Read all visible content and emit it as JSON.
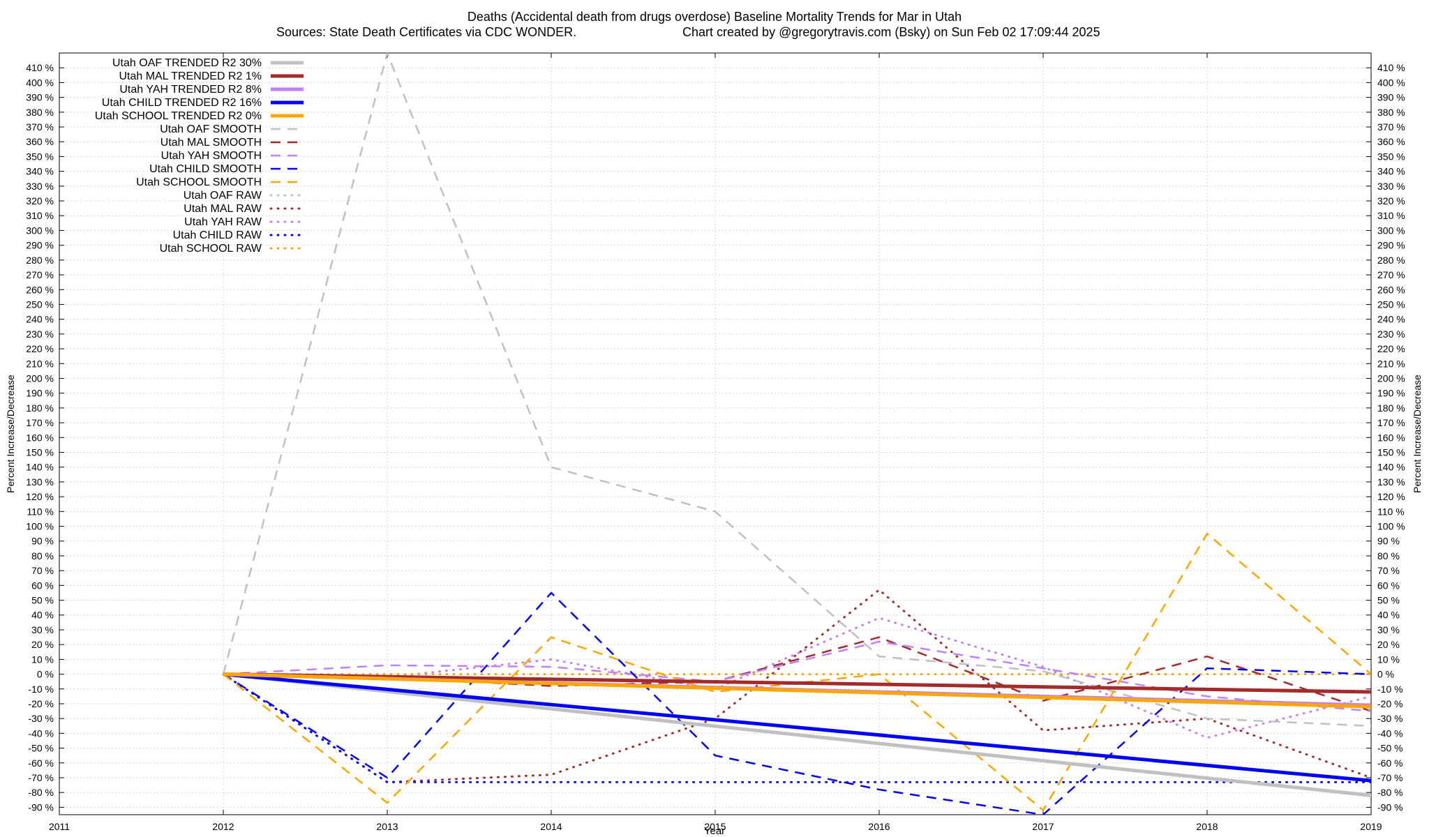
{
  "chart_data": {
    "type": "line",
    "title": "Deaths (Accidental death from drugs overdose)  Baseline Mortality Trends for Mar in Utah",
    "subtitle_sources": "Sources: State Death Certificates via CDC WONDER.",
    "subtitle_credit": "Chart created by @gregorytravis.com (Bsky) on Sun Feb 02 17:09:44 2025",
    "xlabel": "Year",
    "ylabel": "Percent Increase/Decrease",
    "y2label": "Percent Increase/Decrease",
    "xlim": [
      2011,
      2019
    ],
    "ylim": [
      -95,
      420
    ],
    "x_ticks": [
      2011,
      2012,
      2013,
      2014,
      2015,
      2016,
      2017,
      2018,
      2019
    ],
    "y_tick_start": -90,
    "y_tick_end": 410,
    "y_tick_step": 10,
    "y_tick_suffix": " %",
    "grid": true,
    "legend_position": "top-left",
    "series": [
      {
        "name": "Utah OAF TRENDED R2  30%",
        "style": "trend",
        "color": "#c0c0c0",
        "x": [
          2012,
          2019
        ],
        "y": [
          0,
          -82
        ]
      },
      {
        "name": "Utah MAL TRENDED R2   1%",
        "style": "trend",
        "color": "#a52a2a",
        "x": [
          2012,
          2019
        ],
        "y": [
          0,
          -12
        ]
      },
      {
        "name": "Utah YAH TRENDED R2   8%",
        "style": "trend",
        "color": "#c080ff",
        "x": [
          2012,
          2019
        ],
        "y": [
          0,
          -21
        ]
      },
      {
        "name": "Utah CHILD TRENDED R2  16%",
        "style": "trend",
        "color": "#0000ff",
        "x": [
          2012,
          2019
        ],
        "y": [
          0,
          -72
        ]
      },
      {
        "name": "Utah SCHOOL TRENDED R2   0%",
        "style": "trend",
        "color": "#ffa500",
        "x": [
          2012,
          2019
        ],
        "y": [
          0,
          -22
        ]
      },
      {
        "name": "Utah OAF SMOOTH",
        "style": "smooth",
        "color": "#c0c0c0",
        "x": [
          2012,
          2013,
          2014,
          2015,
          2016,
          2017,
          2018,
          2019
        ],
        "y": [
          0,
          420,
          140,
          110,
          12,
          2,
          -30,
          -35
        ]
      },
      {
        "name": "Utah MAL SMOOTH",
        "style": "smooth",
        "color": "#a52a2a",
        "x": [
          2012,
          2013,
          2014,
          2015,
          2016,
          2017,
          2018,
          2019
        ],
        "y": [
          0,
          -2,
          -8,
          -5,
          25,
          -18,
          12,
          -25
        ]
      },
      {
        "name": "Utah YAH SMOOTH",
        "style": "smooth",
        "color": "#c080ff",
        "x": [
          2012,
          2013,
          2014,
          2015,
          2016,
          2017,
          2018,
          2019
        ],
        "y": [
          0,
          6,
          5,
          -5,
          22,
          4,
          -15,
          -25
        ]
      },
      {
        "name": "Utah CHILD SMOOTH",
        "style": "smooth",
        "color": "#0000ff",
        "x": [
          2012,
          2013,
          2014,
          2015,
          2016,
          2017,
          2018,
          2019
        ],
        "y": [
          0,
          -70,
          55,
          -55,
          -78,
          -95,
          4,
          0
        ]
      },
      {
        "name": "Utah SCHOOL SMOOTH",
        "style": "smooth",
        "color": "#ffa500",
        "x": [
          2012,
          2013,
          2014,
          2015,
          2016,
          2017,
          2018,
          2019
        ],
        "y": [
          0,
          -87,
          25,
          -12,
          0,
          -92,
          95,
          0
        ]
      },
      {
        "name": "Utah OAF RAW",
        "style": "raw",
        "color": "#c0c0c0",
        "x": [
          2012,
          2013,
          2014,
          2015,
          2016,
          2017,
          2018,
          2019
        ],
        "y": [
          0,
          0,
          0,
          0,
          0,
          0,
          0,
          0
        ]
      },
      {
        "name": "Utah MAL RAW",
        "style": "raw",
        "color": "#a52a2a",
        "x": [
          2012,
          2013,
          2014,
          2015,
          2016,
          2017,
          2018,
          2019
        ],
        "y": [
          0,
          -73,
          -68,
          -30,
          57,
          -38,
          -30,
          -70
        ]
      },
      {
        "name": "Utah YAH RAW",
        "style": "raw",
        "color": "#c080ff",
        "x": [
          2012,
          2013,
          2014,
          2015,
          2016,
          2017,
          2018,
          2019
        ],
        "y": [
          0,
          -2,
          10,
          -10,
          38,
          5,
          -43,
          -15
        ]
      },
      {
        "name": "Utah CHILD RAW",
        "style": "raw",
        "color": "#0000ff",
        "x": [
          2012,
          2013,
          2014,
          2015,
          2016,
          2017,
          2018,
          2019
        ],
        "y": [
          0,
          -73,
          -73,
          -73,
          -73,
          -73,
          -73,
          -73
        ]
      },
      {
        "name": "Utah SCHOOL RAW",
        "style": "raw",
        "color": "#ffa500",
        "x": [
          2012,
          2013,
          2014,
          2015,
          2016,
          2017,
          2018,
          2019
        ],
        "y": [
          0,
          0,
          0,
          0,
          0,
          0,
          0,
          0
        ]
      }
    ]
  }
}
